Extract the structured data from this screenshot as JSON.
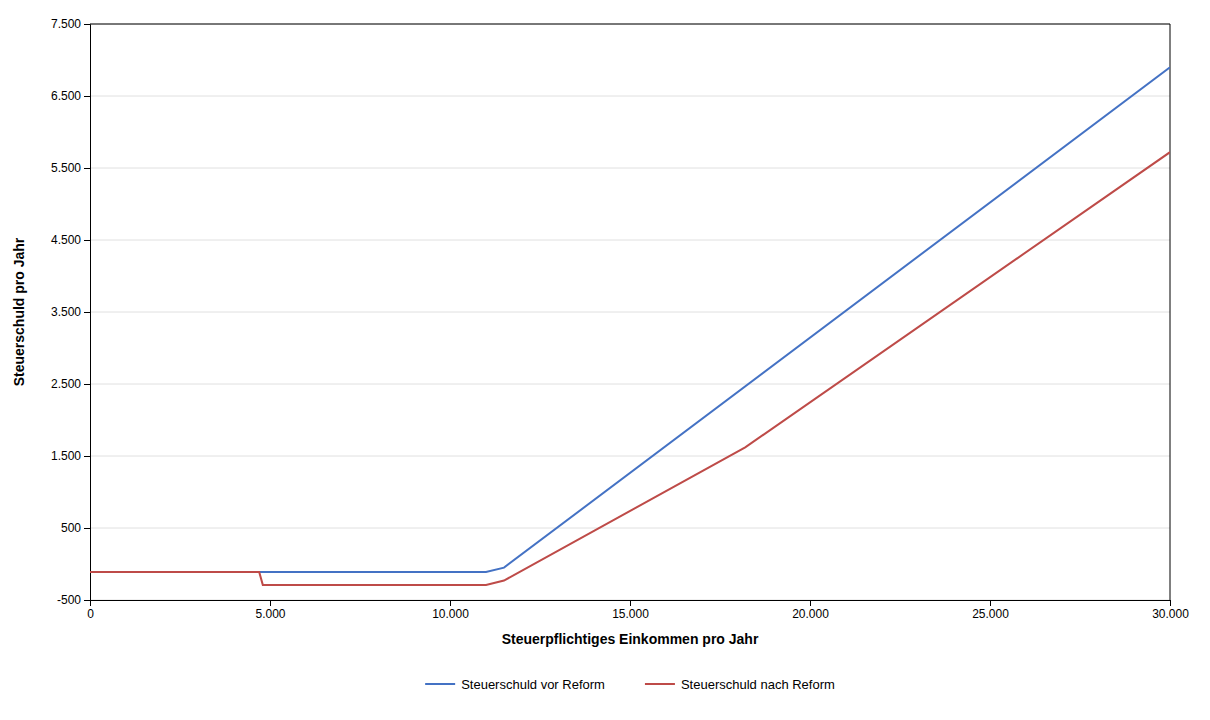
{
  "chart_data": {
    "type": "line",
    "xlabel": "Steuerpflichtiges Einkommen pro Jahr",
    "ylabel": "Steuerschuld pro Jahr",
    "xlim": [
      0,
      30000
    ],
    "ylim": [
      -500,
      7500
    ],
    "xticks": [
      0,
      {
        "value": 5000,
        "label": "5.000"
      },
      {
        "value": 10000,
        "label": "10.000"
      },
      {
        "value": 15000,
        "label": "15.000"
      },
      {
        "value": 20000,
        "label": "20.000"
      },
      {
        "value": 25000,
        "label": "25.000"
      },
      {
        "value": 30000,
        "label": "30.000"
      }
    ],
    "yticks": [
      -500,
      500,
      {
        "value": 1500,
        "label": "1.500"
      },
      {
        "value": 2500,
        "label": "2.500"
      },
      {
        "value": 3500,
        "label": "3.500"
      },
      {
        "value": 4500,
        "label": "4.500"
      },
      {
        "value": 5500,
        "label": "5.500"
      },
      {
        "value": 6500,
        "label": "6.500"
      },
      {
        "value": 7500,
        "label": "7.500"
      }
    ],
    "grid": "y",
    "legend": "bottom",
    "series": [
      {
        "name": "Steuerschuld vor Reform",
        "color": "#4472C4",
        "x": [
          0,
          4800,
          11000,
          11500,
          30000
        ],
        "values": [
          -110,
          -110,
          -110,
          -50,
          6900
        ]
      },
      {
        "name": "Steuerschuld nach Reform",
        "color": "#BE4B48",
        "x": [
          0,
          4700,
          4800,
          11000,
          11500,
          18200,
          30000
        ],
        "values": [
          -110,
          -110,
          -290,
          -290,
          -230,
          1620,
          5720
        ]
      }
    ]
  }
}
